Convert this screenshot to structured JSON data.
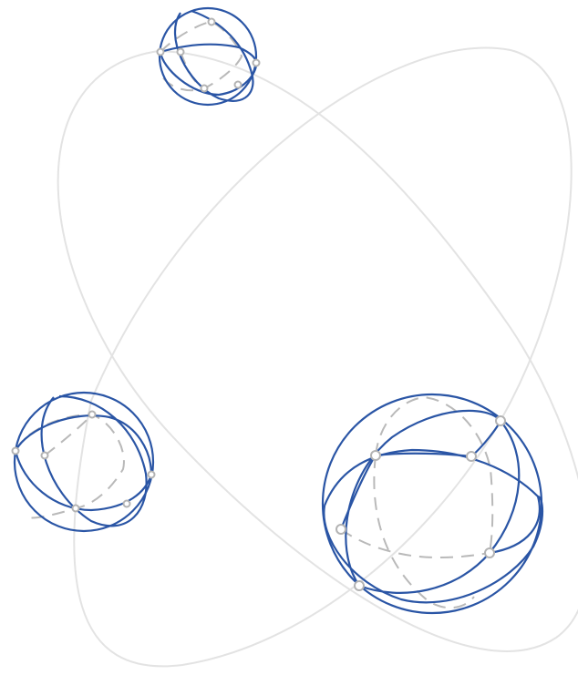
{
  "figure": {
    "description_text": "",
    "colors": {
      "orbit": "#e3e3e3",
      "sphere": "#2a55a5",
      "hidden": "#b9b9b9",
      "vertex": "#b3b3b3"
    },
    "icons": [
      "sphere-icon",
      "orbit-ellipse-icon"
    ],
    "spheres": [
      {
        "name": "small-sphere",
        "great_circles": 3,
        "vertices": 6
      },
      {
        "name": "medium-sphere",
        "great_circles": 3,
        "vertices": 6
      },
      {
        "name": "large-sphere",
        "great_circles": 3,
        "vertices": 6
      }
    ],
    "orbits": 2
  }
}
